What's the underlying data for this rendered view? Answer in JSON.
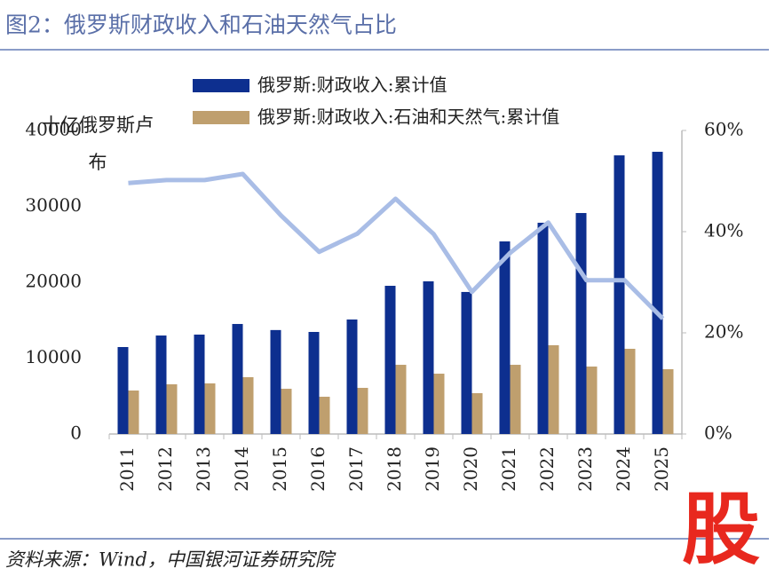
{
  "header": {
    "title": "图2：俄罗斯财政收入和石油天然气占比"
  },
  "chart_data": {
    "type": "bar",
    "y_label": "十亿俄罗斯卢布",
    "categories": [
      "2011",
      "2012",
      "2013",
      "2014",
      "2015",
      "2016",
      "2017",
      "2018",
      "2019",
      "2020",
      "2021",
      "2022",
      "2023",
      "2024",
      "2025"
    ],
    "series": [
      {
        "name": "俄罗斯:财政收入:累计值",
        "color": "#0d2f8f",
        "type": "bar",
        "values": [
          11460,
          12980,
          13100,
          14500,
          13700,
          13450,
          15090,
          19530,
          20120,
          18720,
          25380,
          27840,
          29120,
          36720,
          37190
        ]
      },
      {
        "name": "俄罗斯:财政收入:石油和天然气:累计值",
        "color": "#bf9f6e",
        "type": "bar",
        "values": [
          5730,
          6550,
          6670,
          7490,
          5960,
          4910,
          6080,
          9120,
          7950,
          5380,
          9120,
          11700,
          8890,
          11230,
          8540
        ]
      },
      {
        "color": "#a9bde6",
        "type": "line",
        "axis": "y2",
        "values": [
          49.6,
          50.2,
          50.2,
          51.4,
          43.2,
          36.0,
          39.6,
          46.5,
          39.5,
          28.1,
          35.8,
          41.8,
          30.4,
          30.4,
          22.8
        ]
      }
    ],
    "ylim": [
      0,
      40000
    ],
    "yticks": [
      0,
      10000,
      20000,
      30000,
      40000
    ],
    "y2lim": [
      0,
      60
    ],
    "y2ticks": [
      {
        "value": 0,
        "label": "0%"
      },
      {
        "value": 20,
        "label": "20%"
      },
      {
        "value": 40,
        "label": "40%"
      },
      {
        "value": 60,
        "label": "60%"
      }
    ],
    "grid": false,
    "legend": "top"
  },
  "footer": {
    "source": "资料来源：Wind，中国银河证券研究院"
  },
  "logo": "股"
}
